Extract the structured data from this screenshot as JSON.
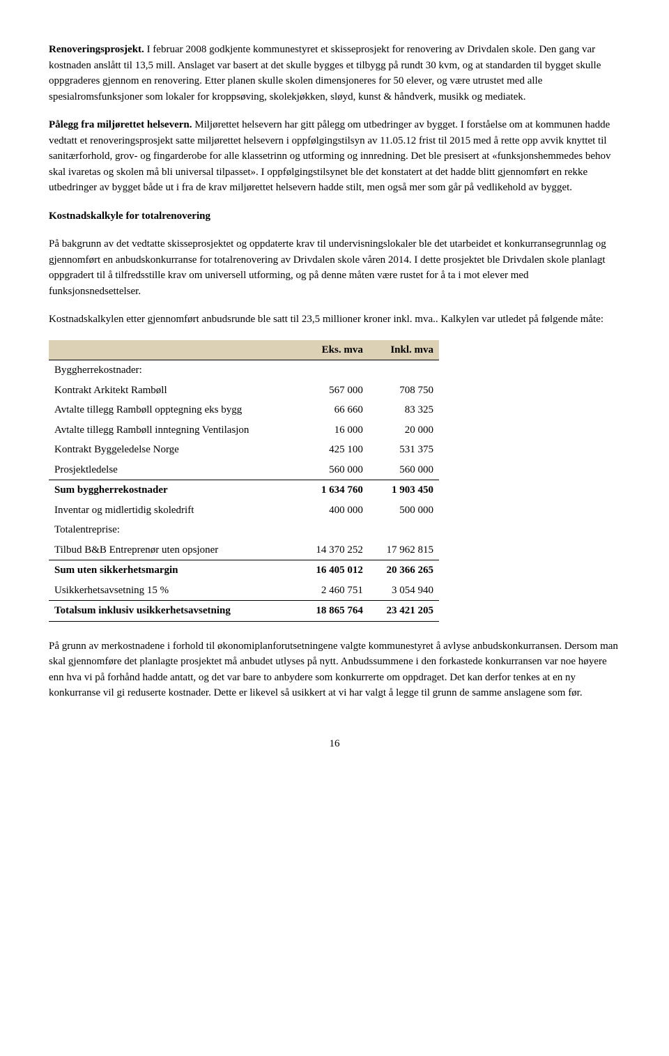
{
  "para1": {
    "runin": "Renoveringsprosjekt.",
    "body": " I februar 2008 godkjente kommunestyret et skisseprosjekt for renovering av Drivdalen skole. Den gang var kostnaden anslått til 13,5 mill. Anslaget var basert at det skulle bygges et tilbygg på rundt 30 kvm, og at standarden til bygget skulle oppgraderes gjennom en renovering. Etter planen skulle skolen dimensjoneres for 50 elever, og være utrustet med alle spesialromsfunksjoner som lokaler for kroppsøving, skolekjøkken, sløyd, kunst & håndverk, musikk og mediatek."
  },
  "para2": {
    "runin": "Pålegg fra miljørettet helsevern.",
    "body": " Miljørettet helsevern har gitt pålegg om utbedringer av bygget.  I forståelse om at kommunen hadde vedtatt et renoveringsprosjekt satte miljørettet helsevern i oppfølgingstilsyn av 11.05.12 frist til 2015 med å rette opp avvik knyttet til sanitærforhold, grov- og fingarderobe for alle klassetrinn og utforming og innredning. Det ble presisert at «funksjonshemmedes behov skal ivaretas og skolen må bli universal tilpasset». I oppfølgingstilsynet ble det konstatert at det hadde blitt gjennomført en rekke utbedringer av bygget både ut i fra de krav miljørettet helsevern hadde stilt, men også mer som går på vedlikehold av bygget."
  },
  "heading1": "Kostnadskalkyle for totalrenovering",
  "para3": "På bakgrunn av det vedtatte skisseprosjektet og oppdaterte krav til  undervisningslokaler ble det utarbeidet et konkurransegrunnlag og gjennomført en anbudskonkurranse for totalrenovering av Drivdalen skole våren 2014. I dette prosjektet ble Drivdalen skole planlagt oppgradert til å tilfredsstille krav om universell utforming, og på denne måten være rustet for å ta i mot elever med funksjonsnedsettelser.",
  "para4": "Kostnadskalkylen etter gjennomført anbudsrunde ble satt til 23,5 millioner kroner inkl. mva.. Kalkylen var utledet på følgende måte:",
  "table": {
    "header_bg": "#ddd1b5",
    "col1": "Eks. mva",
    "col2": "Inkl. mva",
    "rows": [
      {
        "label": "Byggherrekostnader:",
        "c1": "",
        "c2": "",
        "style": "plain"
      },
      {
        "label": "Kontrakt Arkitekt Rambøll",
        "c1": "567 000",
        "c2": "708 750",
        "style": "plain"
      },
      {
        "label": "Avtalte tillegg Rambøll opptegning eks bygg",
        "c1": "66 660",
        "c2": "83 325",
        "style": "plain"
      },
      {
        "label": "Avtalte tillegg Rambøll inntegning Ventilasjon",
        "c1": "16 000",
        "c2": "20 000",
        "style": "plain"
      },
      {
        "label": "Kontrakt Byggeledelse Norge",
        "c1": "425 100",
        "c2": "531 375",
        "style": "plain"
      },
      {
        "label": "Prosjektledelse",
        "c1": "560 000",
        "c2": "560 000",
        "style": "plain"
      },
      {
        "label": "Sum byggherrekostnader",
        "c1": "1 634 760",
        "c2": "1 903 450",
        "style": "sum"
      },
      {
        "label": "Inventar og midlertidig skoledrift",
        "c1": "400 000",
        "c2": "500 000",
        "style": "plain"
      },
      {
        "label": "Totalentreprise:",
        "c1": "",
        "c2": "",
        "style": "plain"
      },
      {
        "label": "Tilbud B&B Entreprenør uten opsjoner",
        "c1": "14 370 252",
        "c2": "17 962 815",
        "style": "plain"
      },
      {
        "label": "Sum uten sikkerhetsmargin",
        "c1": "16 405 012",
        "c2": "20 366 265",
        "style": "sum"
      },
      {
        "label": "Usikkerhetsavsetning 15 %",
        "c1": "2 460 751",
        "c2": "3 054 940",
        "style": "plain"
      },
      {
        "label": "Totalsum inklusiv usikkerhetsavsetning",
        "c1": "18 865 764",
        "c2": "23 421 205",
        "style": "total"
      }
    ]
  },
  "para5": "På grunn av merkostnadene i forhold til økonomiplanforutsetningene valgte kommunestyret å avlyse anbudskonkurransen. Dersom man skal gjennomføre det planlagte prosjektet må anbudet utlyses på nytt. Anbudssummene i den forkastede konkurransen var noe høyere enn hva vi på forhånd hadde antatt, og det var bare to anbydere som konkurrerte om oppdraget. Det kan derfor tenkes at en ny konkurranse vil gi reduserte kostnader. Dette er likevel så usikkert at vi har valgt å legge til grunn de samme anslagene som før.",
  "pageNumber": "16"
}
